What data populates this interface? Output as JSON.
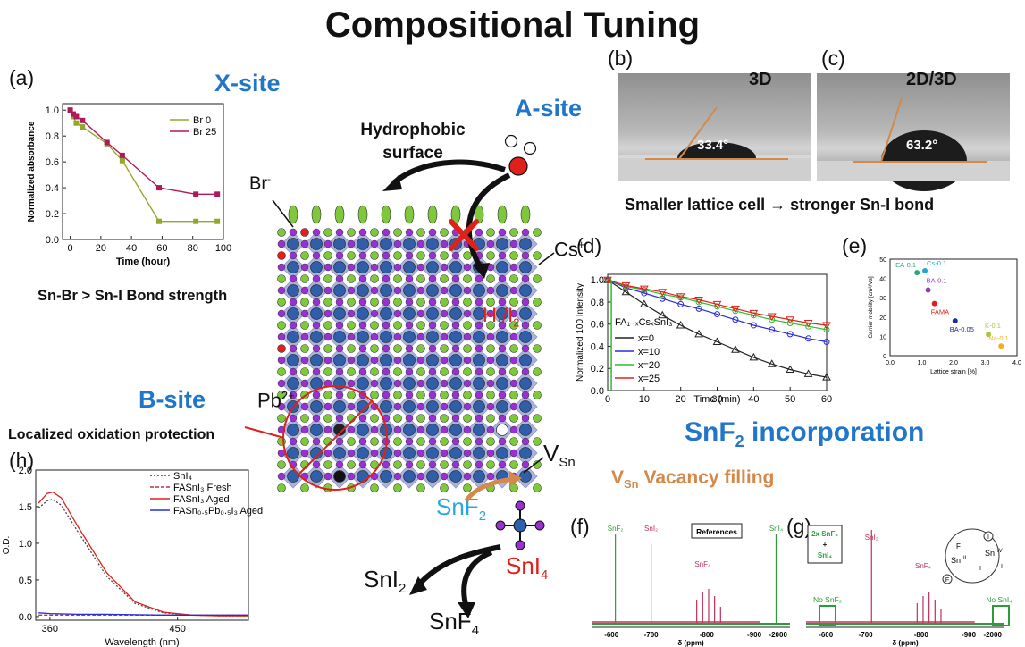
{
  "title": "Compositional Tuning",
  "sections": {
    "x_site": "X-site",
    "a_site": "A-site",
    "b_site": "B-site",
    "snf2_incorporation": "SnF",
    "snf2_incorporation_sub": "2",
    "snf2_incorporation_tail": " incorporation"
  },
  "captions": {
    "bond_strength": "Sn-Br > Sn-I Bond strength",
    "hydrophobic": [
      "Hydrophobic",
      "surface"
    ],
    "lattice_cell": "Smaller lattice cell → stronger Sn-I bond",
    "oxidation_protection": "Localized oxidation protection",
    "vacancy_filling": "Vacancy filling",
    "vacancy_prefix": "V",
    "vacancy_sub": "Sn"
  },
  "panel_labels": [
    "(a)",
    "(b)",
    "(c)",
    "(d)",
    "(e)",
    "(f)",
    "(g)",
    "(h)"
  ],
  "photos": {
    "b": {
      "label": "3D",
      "angle": "33.4°"
    },
    "c": {
      "label": "2D/3D",
      "angle": "63.2°"
    }
  },
  "lattice_labels": {
    "br": "Br",
    "br_sup": "-",
    "cs": "Cs",
    "cs_sup": "+",
    "hi": "HI/I",
    "hi_sub": "2",
    "pb": "Pb",
    "pb_sup": "2+",
    "vsn": "V",
    "vsn_sub": "Sn",
    "snf2": "SnF",
    "snf2_sub": "2",
    "sni4": "SnI",
    "sni4_sub": "4",
    "sni2": "SnI",
    "sni2_sub": "2",
    "snf4": "SnF",
    "snf4_sub": "4"
  },
  "colors": {
    "accent_blue": "#2176c7",
    "orange": "#d4894a",
    "red": "#e0201b",
    "sn_blue": "#2f5fa8",
    "iodide": "#9b30d0",
    "cation": "#7dc83b"
  },
  "chart_data": [
    {
      "id": "a",
      "type": "line",
      "xlabel": "Time (hour)",
      "ylabel": "Normalized absorbance",
      "xlim": [
        -5,
        100
      ],
      "ylim": [
        0,
        1.05
      ],
      "xticks": [
        0,
        20,
        40,
        60,
        80,
        100
      ],
      "yticks": [
        "0.0",
        "0.2",
        "0.4",
        "0.6",
        "0.8",
        "1.0"
      ],
      "series": [
        {
          "name": "Br 0",
          "color": "#8faa2a",
          "x": [
            0,
            2,
            4,
            8,
            24,
            34,
            58,
            82,
            96
          ],
          "y": [
            1.0,
            0.95,
            0.9,
            0.87,
            0.74,
            0.61,
            0.14,
            0.14,
            0.14
          ]
        },
        {
          "name": "Br 25",
          "color": "#b0185a",
          "x": [
            0,
            2,
            4,
            8,
            24,
            34,
            58,
            82,
            96
          ],
          "y": [
            1.0,
            0.97,
            0.95,
            0.92,
            0.75,
            0.65,
            0.4,
            0.35,
            0.35
          ]
        }
      ]
    },
    {
      "id": "d",
      "type": "line",
      "xlabel": "Time (min)",
      "ylabel": "Normalized 100 Intensity",
      "xlim": [
        0,
        60
      ],
      "ylim": [
        0,
        1.05
      ],
      "xticks": [
        0,
        10,
        20,
        30,
        40,
        50,
        60
      ],
      "yticks": [
        "0.0",
        "0.2",
        "0.4",
        "0.6",
        "0.8",
        "1.0"
      ],
      "legend_title": "FA₁₋ₓCsₓSnI₃",
      "series": [
        {
          "name": "x=0",
          "color": "#222222",
          "x": [
            0,
            5,
            10,
            15,
            20,
            25,
            30,
            35,
            40,
            45,
            50,
            55,
            60
          ],
          "y": [
            1.0,
            0.89,
            0.78,
            0.68,
            0.59,
            0.51,
            0.44,
            0.37,
            0.3,
            0.24,
            0.19,
            0.15,
            0.12
          ]
        },
        {
          "name": "x=10",
          "color": "#2b2bd8",
          "x": [
            0,
            5,
            10,
            15,
            20,
            25,
            30,
            35,
            40,
            45,
            50,
            55,
            60
          ],
          "y": [
            1.0,
            0.93,
            0.88,
            0.83,
            0.78,
            0.74,
            0.69,
            0.64,
            0.59,
            0.55,
            0.51,
            0.47,
            0.44
          ]
        },
        {
          "name": "x=20",
          "color": "#2fbf2f",
          "x": [
            0,
            5,
            10,
            15,
            20,
            25,
            30,
            35,
            40,
            45,
            50,
            55,
            60
          ],
          "y": [
            1.0,
            0.94,
            0.91,
            0.87,
            0.84,
            0.8,
            0.76,
            0.72,
            0.68,
            0.64,
            0.61,
            0.58,
            0.55
          ]
        },
        {
          "name": "x=25",
          "color": "#e0201b",
          "x": [
            0,
            5,
            10,
            15,
            20,
            25,
            30,
            35,
            40,
            45,
            50,
            55,
            60
          ],
          "y": [
            1.0,
            0.95,
            0.92,
            0.89,
            0.85,
            0.82,
            0.78,
            0.74,
            0.7,
            0.67,
            0.64,
            0.61,
            0.59
          ]
        }
      ]
    },
    {
      "id": "e",
      "type": "scatter",
      "xlabel": "Lattice strain [%]",
      "ylabel": "Carrier mobility [cm²/Vs]",
      "xlim": [
        0,
        4
      ],
      "ylim": [
        0,
        50
      ],
      "xticks": [
        "0.0",
        "1.0",
        "2.0",
        "3.0",
        "4.0"
      ],
      "yticks": [
        "0",
        "10",
        "20",
        "30",
        "40",
        "50"
      ],
      "points": [
        {
          "label": "EA-0.1",
          "x": 0.85,
          "y": 43,
          "color": "#2aa876"
        },
        {
          "label": "Cs-0.1",
          "x": 1.1,
          "y": 44,
          "color": "#1faacc"
        },
        {
          "label": "BA-0.1",
          "x": 1.2,
          "y": 34,
          "color": "#8a3fb0"
        },
        {
          "label": "FAMA",
          "x": 1.4,
          "y": 27,
          "color": "#e0201b"
        },
        {
          "label": "BA-0.05",
          "x": 2.05,
          "y": 18,
          "color": "#1c2f8a"
        },
        {
          "label": "K-0.1",
          "x": 3.1,
          "y": 11,
          "color": "#a8c838"
        },
        {
          "label": "Na-0.1",
          "x": 3.5,
          "y": 5,
          "color": "#f0b020"
        }
      ]
    },
    {
      "id": "h",
      "type": "line",
      "xlabel": "Wavelength (nm)",
      "ylabel": "O.D.",
      "xlim": [
        350,
        500
      ],
      "ylim": [
        -0.05,
        2.0
      ],
      "xticks": [
        "360",
        "450"
      ],
      "yticks": [
        "0.0",
        "0.5",
        "1.0",
        "1.5",
        "2.0"
      ],
      "series": [
        {
          "name": "SnI₄",
          "color": "#444444",
          "x": [
            352,
            358,
            362,
            368,
            380,
            400,
            420,
            440,
            460,
            480,
            500
          ],
          "y": [
            1.48,
            1.58,
            1.6,
            1.52,
            1.15,
            0.55,
            0.18,
            0.05,
            0.02,
            0.01,
            0.01
          ]
        },
        {
          "name": "FASnI₃ Fresh",
          "color": "#c0304a",
          "x": [
            352,
            360,
            380,
            400,
            440,
            500
          ],
          "y": [
            0.02,
            0.02,
            0.02,
            0.02,
            0.02,
            0.02
          ]
        },
        {
          "name": "FASnI₃ Aged",
          "color": "#e0201b",
          "x": [
            352,
            358,
            362,
            368,
            380,
            400,
            420,
            440,
            460,
            480,
            500
          ],
          "y": [
            1.55,
            1.68,
            1.7,
            1.62,
            1.22,
            0.6,
            0.2,
            0.06,
            0.02,
            0.01,
            0.01
          ]
        },
        {
          "name": "FASn₀.₅Pb₀.₅I₃ Aged",
          "color": "#2b2bd8",
          "x": [
            352,
            360,
            380,
            400,
            440,
            500
          ],
          "y": [
            0.05,
            0.04,
            0.03,
            0.03,
            0.02,
            0.02
          ]
        }
      ]
    },
    {
      "id": "f",
      "type": "line",
      "xlabel": "δ (ppm)",
      "legend": "References",
      "xticks": [
        "-600",
        "-700",
        "-800",
        "-900",
        "-2000"
      ],
      "peak_labels": [
        "SnF₂",
        "SnI₂",
        "SnF₄",
        "SnI₄"
      ]
    },
    {
      "id": "g",
      "type": "line",
      "xlabel": "δ (ppm)",
      "legend": [
        "2x SnF₂",
        "+",
        "SnI₄"
      ],
      "xticks": [
        "-600",
        "-700",
        "-800",
        "-900",
        "-2000"
      ],
      "peak_labels": [
        "SnI₂",
        "SnF₄"
      ],
      "annotations": [
        "No SnF₂",
        "No SnI₄"
      ],
      "scheme_labels": [
        "F",
        "Sn",
        "II",
        "Sn",
        "IV",
        "I",
        "I",
        "I",
        "F"
      ]
    }
  ]
}
